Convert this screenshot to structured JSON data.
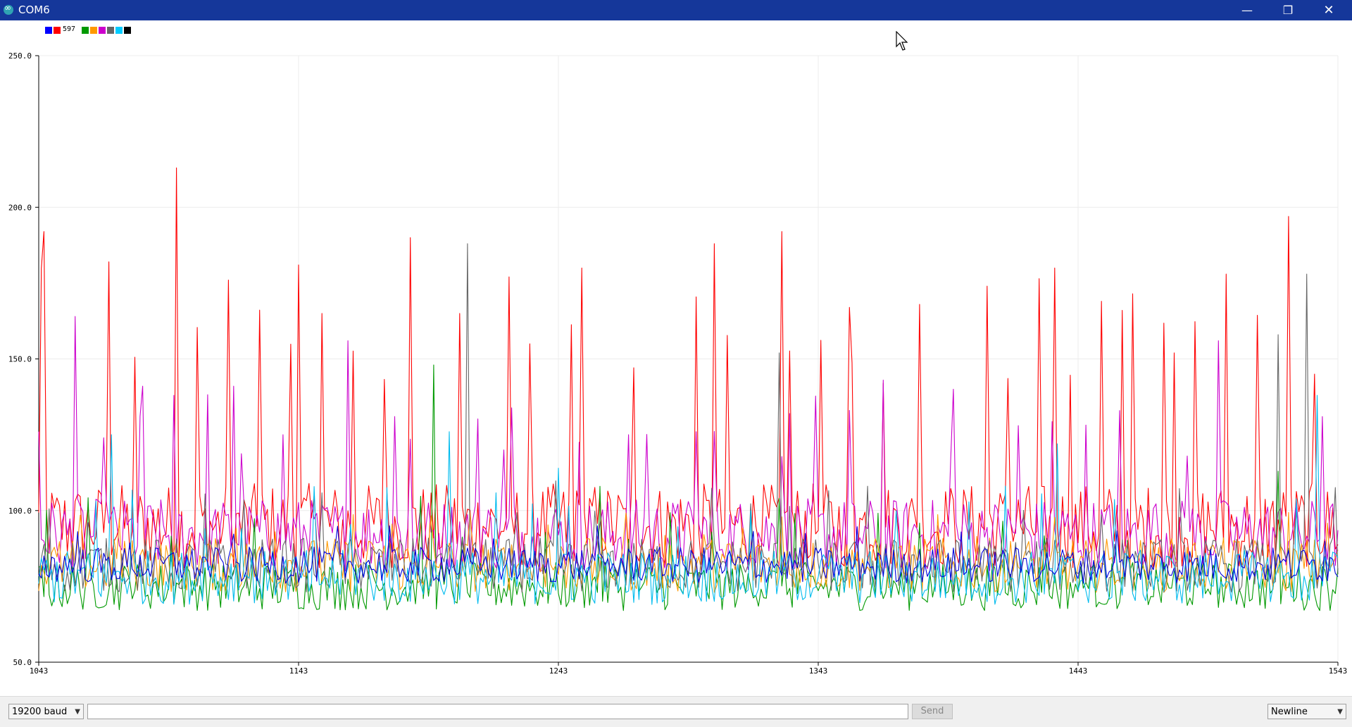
{
  "window": {
    "title": "COM6",
    "buttons": {
      "minimize": "—",
      "maximize": "❐",
      "close": "✕"
    }
  },
  "legend": {
    "label": "597",
    "colors": [
      "#0000ff",
      "#ff0000",
      "#009900",
      "#ff9900",
      "#cc00cc",
      "#666666",
      "#00ccff",
      "#000000"
    ]
  },
  "chart_data": {
    "type": "line",
    "title": "",
    "xlabel": "",
    "ylabel": "",
    "xlim": [
      1043,
      1543
    ],
    "ylim": [
      50,
      250
    ],
    "x_ticks": [
      "1043",
      "1143",
      "1243",
      "1343",
      "1443",
      "1543"
    ],
    "y_ticks": [
      "50.0",
      "100.0",
      "150.0",
      "200.0",
      "250.0"
    ],
    "grid": true,
    "legend_position": "top-left",
    "series": [
      {
        "color": "#ff0000",
        "baseline": 95,
        "noise": 14,
        "spike_every": 12,
        "spike_top": 180,
        "spike_peaks": [
          [
            1045,
            192
          ],
          [
            1070,
            182
          ],
          [
            1096,
            213
          ],
          [
            1143,
            181
          ],
          [
            1186,
            190
          ],
          [
            1205,
            165
          ],
          [
            1232,
            155
          ],
          [
            1252,
            180
          ],
          [
            1303,
            152
          ],
          [
            1303,
            188
          ],
          [
            1329,
            192
          ],
          [
            1355,
            167
          ],
          [
            1382,
            168
          ],
          [
            1408,
            174
          ],
          [
            1434,
            180
          ],
          [
            1460,
            166
          ],
          [
            1480,
            152
          ],
          [
            1500,
            178
          ],
          [
            1524,
            197
          ],
          [
            1534,
            145
          ]
        ]
      },
      {
        "color": "#cc00cc",
        "baseline": 92,
        "noise": 12,
        "spike_every": 13,
        "spike_top": 140,
        "spike_peaks": [
          [
            1057,
            164
          ],
          [
            1068,
            124
          ],
          [
            1083,
            141
          ],
          [
            1118,
            141
          ],
          [
            1137,
            125
          ],
          [
            1162,
            156
          ],
          [
            1180,
            131
          ],
          [
            1222,
            120
          ],
          [
            1270,
            125
          ],
          [
            1296,
            126
          ],
          [
            1332,
            132
          ],
          [
            1368,
            143
          ],
          [
            1395,
            140
          ],
          [
            1420,
            128
          ],
          [
            1497,
            156
          ],
          [
            1537,
            131
          ]
        ]
      },
      {
        "color": "#009900",
        "baseline": 75,
        "noise": 8,
        "spike_every": 16,
        "spike_top": 105,
        "spike_peaks": [
          [
            1195,
            148
          ],
          [
            1259,
            108
          ],
          [
            1328,
            104
          ],
          [
            1520,
            113
          ]
        ]
      },
      {
        "color": "#ff9900",
        "baseline": 82,
        "noise": 9,
        "spike_every": 15,
        "spike_top": 100,
        "spike_peaks": []
      },
      {
        "color": "#666666",
        "baseline": 82,
        "noise": 9,
        "spike_every": 15,
        "spike_top": 110,
        "spike_peaks": [
          [
            1208,
            188
          ],
          [
            1328,
            152
          ],
          [
            1531,
            178
          ],
          [
            1520,
            158
          ]
        ]
      },
      {
        "color": "#00bbee",
        "baseline": 78,
        "noise": 9,
        "spike_every": 14,
        "spike_top": 110,
        "spike_peaks": [
          [
            1071,
            125
          ],
          [
            1201,
            126
          ],
          [
            1243,
            114
          ],
          [
            1435,
            122
          ],
          [
            1535,
            138
          ]
        ]
      },
      {
        "color": "#0000dd",
        "baseline": 82,
        "noise": 6,
        "spike_every": 20,
        "spike_top": 95,
        "spike_peaks": []
      }
    ]
  },
  "bottom": {
    "baud": "19200 baud",
    "message": "",
    "send": "Send",
    "line_ending": "Newline"
  }
}
